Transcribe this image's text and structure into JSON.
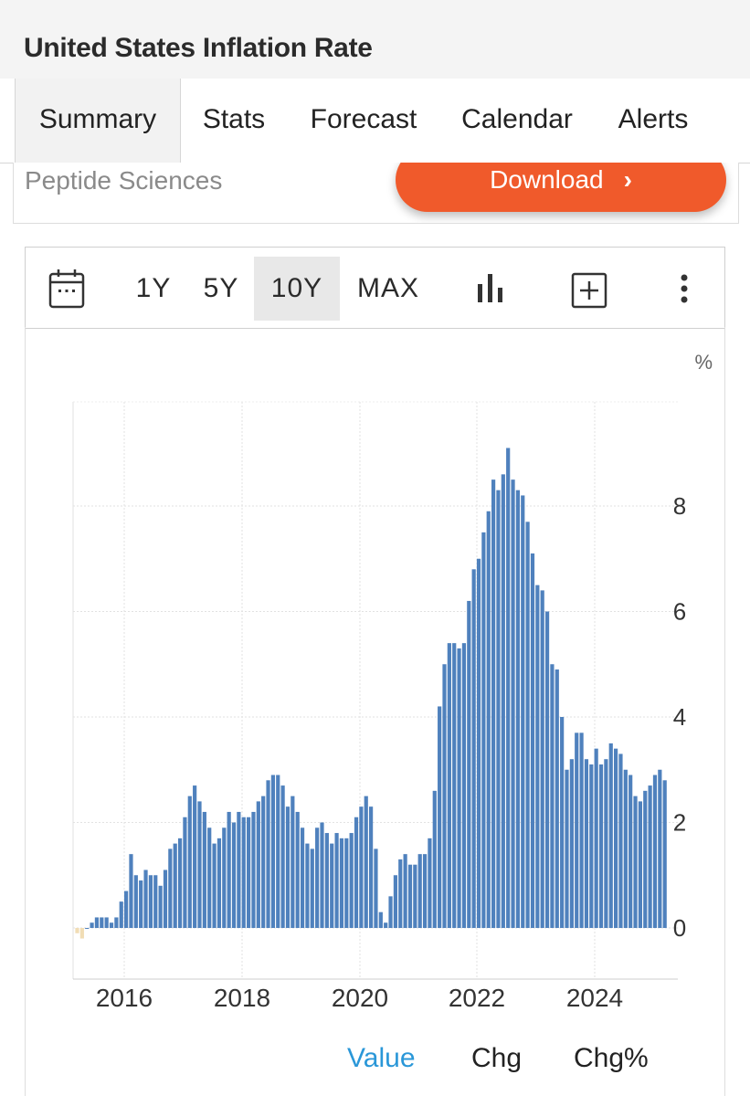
{
  "header": {
    "title": "United States Inflation Rate"
  },
  "tabs": [
    {
      "label": "Summary",
      "active": true
    },
    {
      "label": "Stats",
      "active": false
    },
    {
      "label": "Forecast",
      "active": false
    },
    {
      "label": "Calendar",
      "active": false
    },
    {
      "label": "Alerts",
      "active": false
    }
  ],
  "ad": {
    "sponsor": "Peptide Sciences",
    "button_label": "Download",
    "button_color": "#f05a2b"
  },
  "toolbar": {
    "calendar_icon": "calendar-icon",
    "ranges": [
      {
        "label": "1Y",
        "active": false
      },
      {
        "label": "5Y",
        "active": false
      },
      {
        "label": "10Y",
        "active": true
      },
      {
        "label": "MAX",
        "active": false
      }
    ],
    "chart_type_icon": "bar-chart-icon",
    "compare_icon": "plus-square-icon",
    "more_icon": "more-vertical-icon"
  },
  "chart_data": {
    "type": "bar",
    "title": "",
    "xlabel": "",
    "ylabel": "",
    "unit": "%",
    "y_axis_side": "right",
    "ylim": [
      -1,
      9.8
    ],
    "yticks": [
      0,
      2,
      4,
      6,
      8
    ],
    "xtick_labels": [
      "2016",
      "2018",
      "2020",
      "2022",
      "2024"
    ],
    "grid": true,
    "colors": {
      "positive": "#4f81bd",
      "negative": "#f1ddb5"
    },
    "series": [
      {
        "start": "2015-03",
        "frequency": "monthly",
        "values": [
          -0.1,
          -0.2,
          0.0,
          0.1,
          0.2,
          0.2,
          0.2,
          0.1,
          0.2,
          0.5,
          0.7,
          1.4,
          1.0,
          0.9,
          1.1,
          1.0,
          1.0,
          0.8,
          1.1,
          1.5,
          1.6,
          1.7,
          2.1,
          2.5,
          2.7,
          2.4,
          2.2,
          1.9,
          1.6,
          1.7,
          1.9,
          2.2,
          2.0,
          2.2,
          2.1,
          2.1,
          2.2,
          2.4,
          2.5,
          2.8,
          2.9,
          2.9,
          2.7,
          2.3,
          2.5,
          2.2,
          1.9,
          1.6,
          1.5,
          1.9,
          2.0,
          1.8,
          1.6,
          1.8,
          1.7,
          1.7,
          1.8,
          2.1,
          2.3,
          2.5,
          2.3,
          1.5,
          0.3,
          0.1,
          0.6,
          1.0,
          1.3,
          1.4,
          1.2,
          1.2,
          1.4,
          1.4,
          1.7,
          2.6,
          4.2,
          5.0,
          5.4,
          5.4,
          5.3,
          5.4,
          6.2,
          6.8,
          7.0,
          7.5,
          7.9,
          8.5,
          8.3,
          8.6,
          9.1,
          8.5,
          8.3,
          8.2,
          7.7,
          7.1,
          6.5,
          6.4,
          6.0,
          5.0,
          4.9,
          4.0,
          3.0,
          3.2,
          3.7,
          3.7,
          3.2,
          3.1,
          3.4,
          3.1,
          3.2,
          3.5,
          3.4,
          3.3,
          3.0,
          2.9,
          2.5,
          2.4,
          2.6,
          2.7,
          2.9,
          3.0,
          2.8
        ]
      }
    ]
  },
  "bottom_tabs": [
    {
      "label": "Value",
      "active": true
    },
    {
      "label": "Chg",
      "active": false
    },
    {
      "label": "Chg%",
      "active": false
    }
  ]
}
